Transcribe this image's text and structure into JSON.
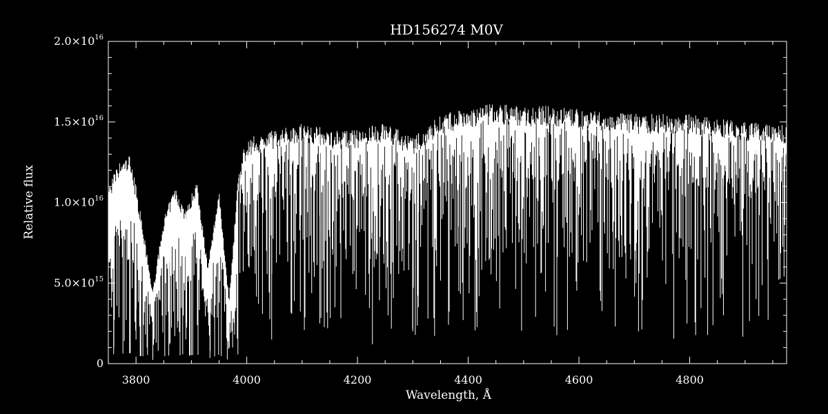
{
  "chart_data": {
    "type": "line",
    "title": "HD156274   M0V",
    "xlabel": "Wavelength, Å",
    "ylabel": "Relative flux",
    "xlim": [
      3750,
      4975
    ],
    "ylim": [
      0,
      2e+16
    ],
    "x_ticks": [
      {
        "value": 3800,
        "label": "3800"
      },
      {
        "value": 4000,
        "label": "4000"
      },
      {
        "value": 4200,
        "label": "4200"
      },
      {
        "value": 4400,
        "label": "4400"
      },
      {
        "value": 4600,
        "label": "4600"
      },
      {
        "value": 4800,
        "label": "4800"
      }
    ],
    "y_ticks": [
      {
        "value": 0,
        "mant": "0",
        "exp": ""
      },
      {
        "value": 5000000000000000.0,
        "mant": "5.0×10",
        "exp": "15"
      },
      {
        "value": 1e+16,
        "mant": "1.0×10",
        "exp": "16"
      },
      {
        "value": 1.5e+16,
        "mant": "1.5×10",
        "exp": "16"
      },
      {
        "value": 2e+16,
        "mant": "2.0×10",
        "exp": "16"
      }
    ],
    "series": [
      {
        "color": "#ffffff",
        "continuum": [
          {
            "x": 3750,
            "y": 1.1e+16
          },
          {
            "x": 3770,
            "y": 1.25e+16
          },
          {
            "x": 3790,
            "y": 1.3e+16
          },
          {
            "x": 3810,
            "y": 9000000000000000.0
          },
          {
            "x": 3830,
            "y": 4500000000000000.0
          },
          {
            "x": 3850,
            "y": 9000000000000000.0
          },
          {
            "x": 3870,
            "y": 1.1e+16
          },
          {
            "x": 3890,
            "y": 9500000000000000.0
          },
          {
            "x": 3910,
            "y": 1.15e+16
          },
          {
            "x": 3930,
            "y": 6000000000000000.0
          },
          {
            "x": 3950,
            "y": 1.1e+16
          },
          {
            "x": 3968,
            "y": 4000000000000000.0
          },
          {
            "x": 3985,
            "y": 1.2e+16
          },
          {
            "x": 4000,
            "y": 1.4e+16
          },
          {
            "x": 4050,
            "y": 1.45e+16
          },
          {
            "x": 4100,
            "y": 1.5e+16
          },
          {
            "x": 4150,
            "y": 1.45e+16
          },
          {
            "x": 4200,
            "y": 1.45e+16
          },
          {
            "x": 4250,
            "y": 1.5e+16
          },
          {
            "x": 4300,
            "y": 1.4e+16
          },
          {
            "x": 4350,
            "y": 1.55e+16
          },
          {
            "x": 4400,
            "y": 1.58e+16
          },
          {
            "x": 4450,
            "y": 1.62e+16
          },
          {
            "x": 4500,
            "y": 1.6e+16
          },
          {
            "x": 4550,
            "y": 1.6e+16
          },
          {
            "x": 4600,
            "y": 1.58e+16
          },
          {
            "x": 4650,
            "y": 1.56e+16
          },
          {
            "x": 4700,
            "y": 1.55e+16
          },
          {
            "x": 4750,
            "y": 1.55e+16
          },
          {
            "x": 4800,
            "y": 1.55e+16
          },
          {
            "x": 4850,
            "y": 1.52e+16
          },
          {
            "x": 4900,
            "y": 1.5e+16
          },
          {
            "x": 4975,
            "y": 1.48e+16
          }
        ],
        "absorption_lines": [
          {
            "x": 3760,
            "y": 1000000000000000.0
          },
          {
            "x": 3800,
            "y": 1500000000000000.0
          },
          {
            "x": 3820,
            "y": 1000000000000000.0
          },
          {
            "x": 3840,
            "y": 800000000000000.0
          },
          {
            "x": 3860,
            "y": 1200000000000000.0
          },
          {
            "x": 3890,
            "y": 1500000000000000.0
          },
          {
            "x": 3934,
            "y": 800000000000000.0
          },
          {
            "x": 3968,
            "y": 1500000000000000.0
          },
          {
            "x": 4045,
            "y": 1500000000000000.0
          },
          {
            "x": 4132,
            "y": 2500000000000000.0
          },
          {
            "x": 4227,
            "y": 1200000000000000.0
          },
          {
            "x": 4300,
            "y": 2000000000000000.0
          },
          {
            "x": 4310,
            "y": 3500000000000000.0
          },
          {
            "x": 4383,
            "y": 4500000000000000.0
          },
          {
            "x": 4540,
            "y": 7500000000000000.0
          },
          {
            "x": 4703,
            "y": 5000000000000000.0
          },
          {
            "x": 4861,
            "y": 3000000000000000.0
          },
          {
            "x": 4920,
            "y": 4000000000000000.0
          }
        ]
      }
    ]
  }
}
